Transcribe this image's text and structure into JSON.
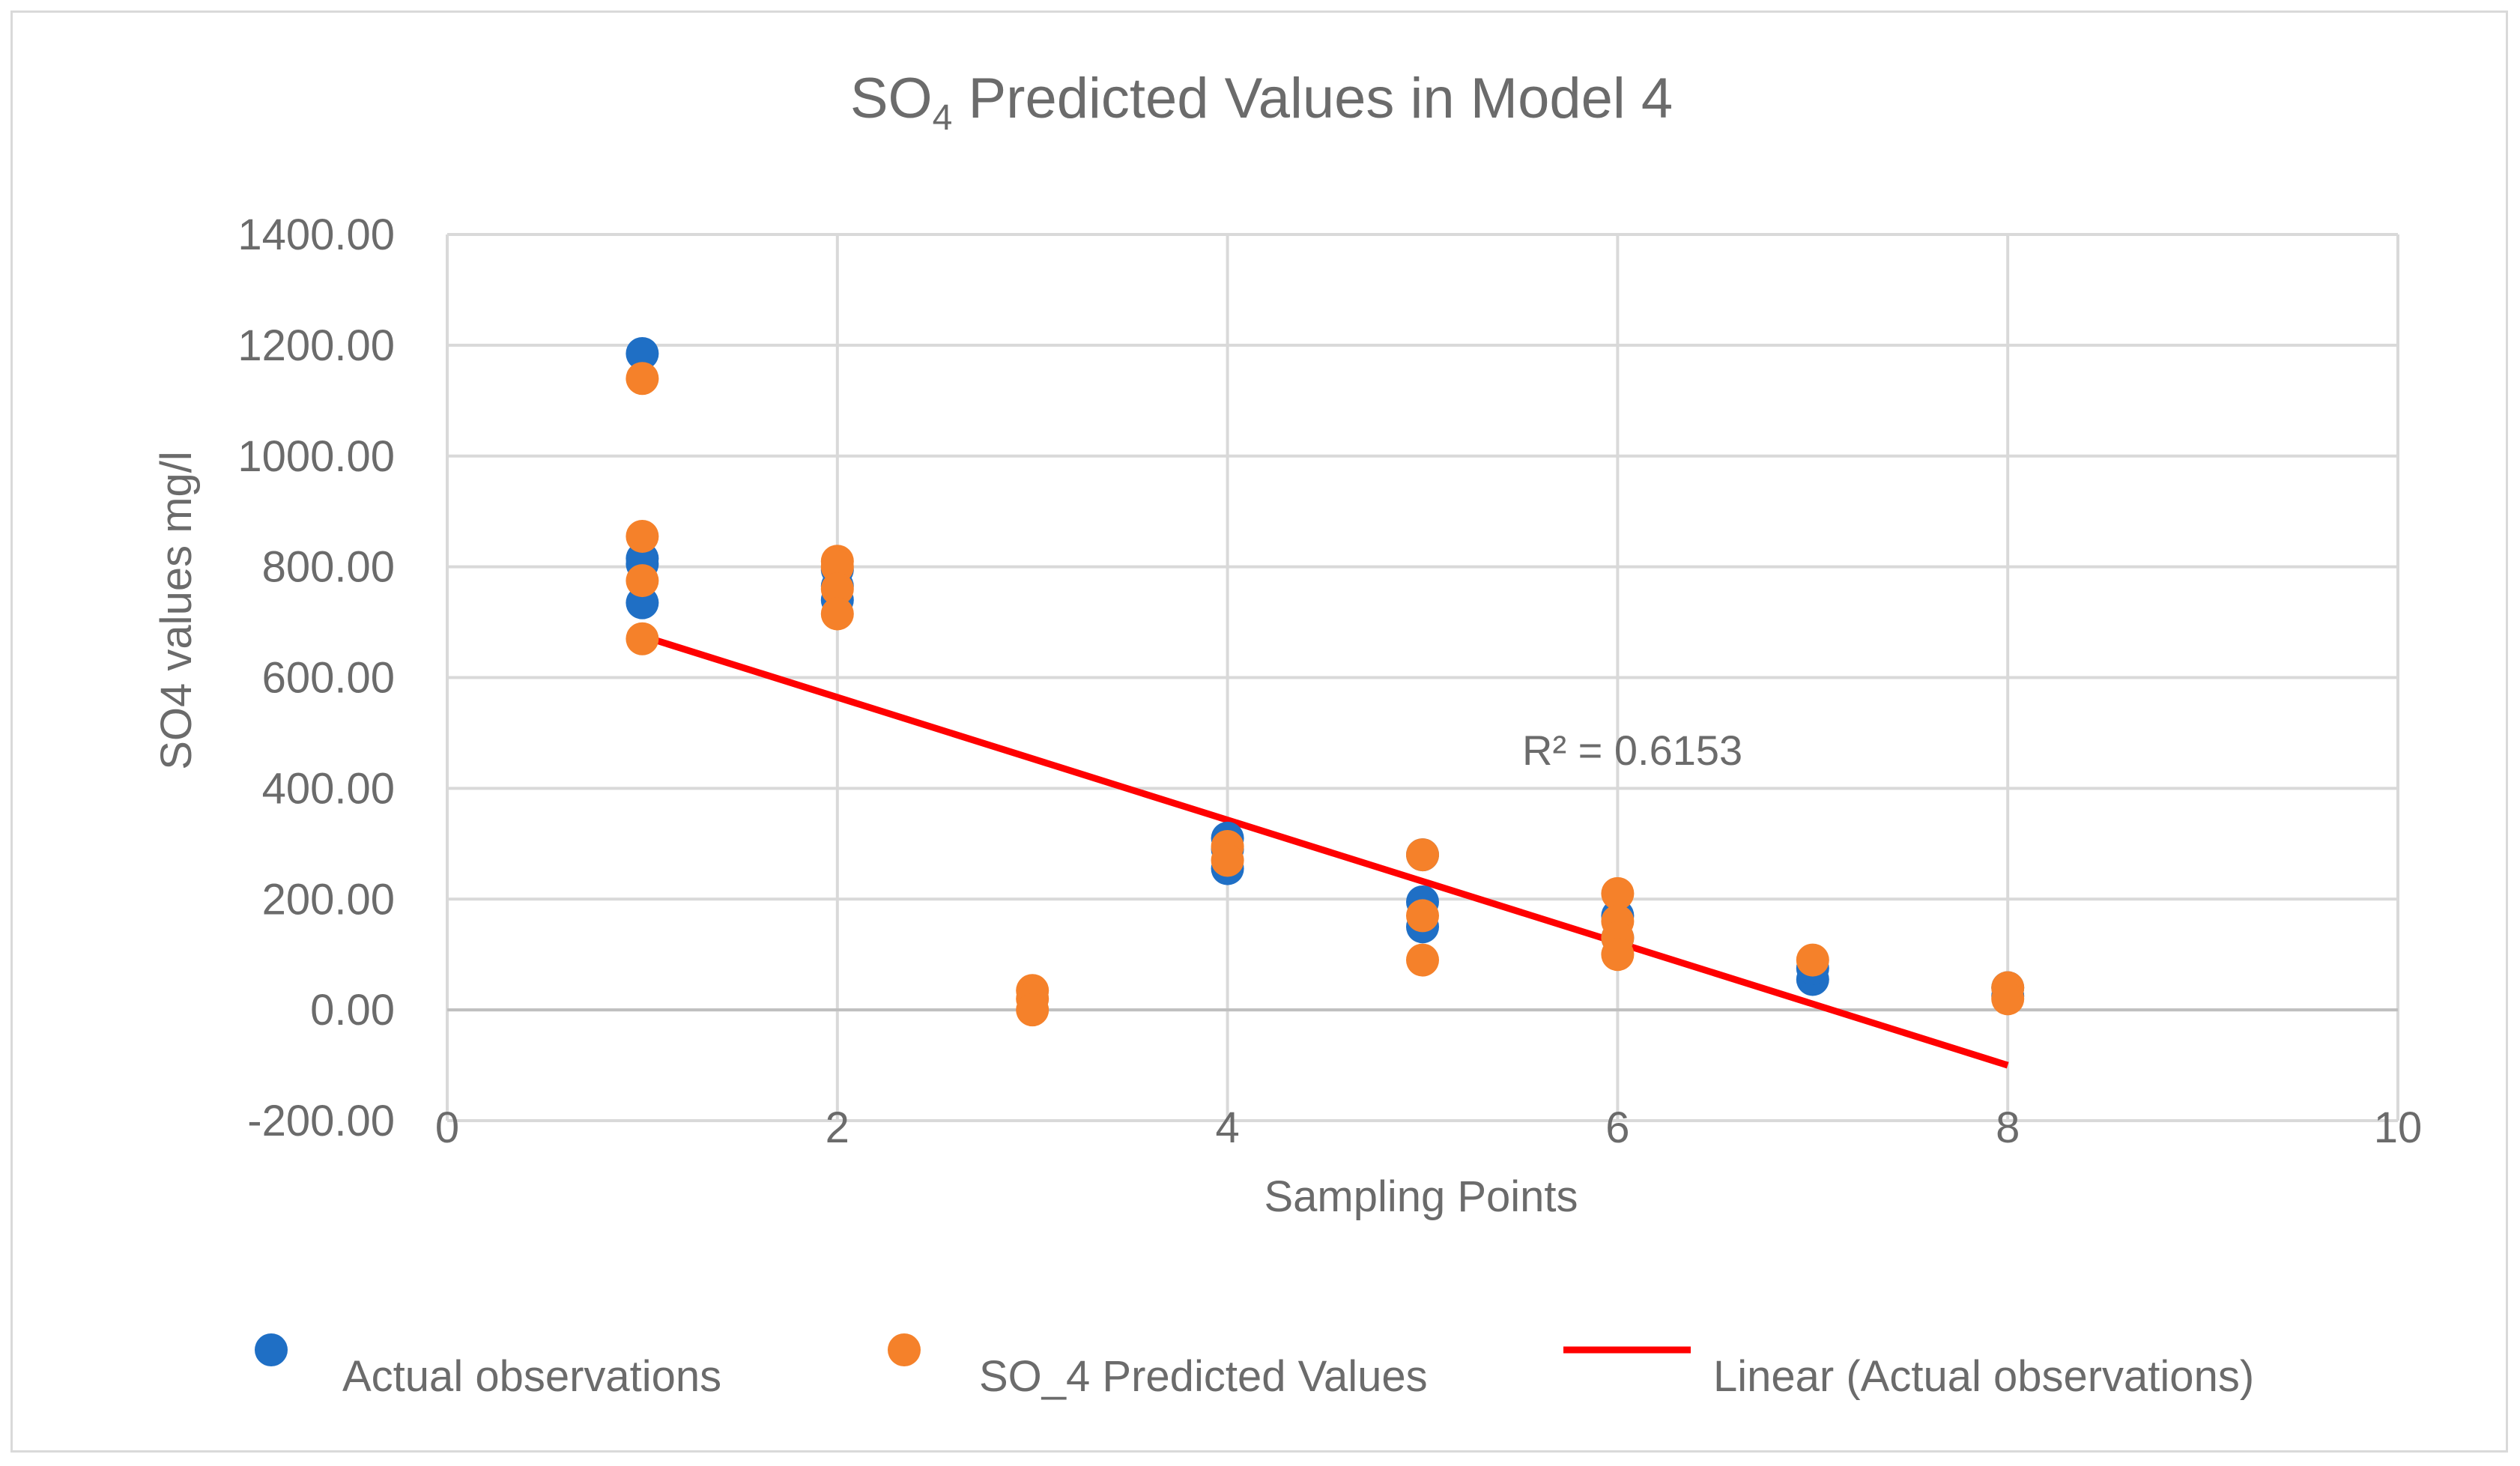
{
  "chart_data": {
    "type": "scatter",
    "title_main": "SO",
    "title_sub": "4",
    "title_rest": " Predicted Values in Model 4",
    "xlabel": "Sampling Points",
    "ylabel": "SO4 values mg/l",
    "xlim": [
      0,
      10
    ],
    "ylim": [
      -200,
      1400
    ],
    "x_ticks": [
      0,
      2,
      4,
      6,
      8,
      10
    ],
    "x_tick_labels": [
      "0",
      "2",
      "4",
      "6",
      "8",
      "10"
    ],
    "y_ticks": [
      1400,
      1200,
      1000,
      800,
      600,
      400,
      200,
      0,
      -200
    ],
    "y_tick_labels": [
      "1400.00",
      "1200.00",
      "1000.00",
      "800.00",
      "600.00",
      "400.00",
      "200.00",
      "0.00",
      "-200.00"
    ],
    "grid": true,
    "series": [
      {
        "name": "Actual observations",
        "color": "#1f6fc5",
        "points": [
          [
            1,
            1185
          ],
          [
            1,
            805
          ],
          [
            1,
            815
          ],
          [
            1,
            735
          ],
          [
            2,
            765
          ],
          [
            2,
            740
          ],
          [
            2,
            795
          ],
          [
            4,
            310
          ],
          [
            4,
            255
          ],
          [
            4,
            290
          ],
          [
            5,
            280
          ],
          [
            5,
            195
          ],
          [
            5,
            150
          ],
          [
            6,
            170
          ],
          [
            6,
            130
          ],
          [
            7,
            55
          ],
          [
            7,
            75
          ],
          [
            8,
            40
          ],
          [
            8,
            25
          ]
        ]
      },
      {
        "name": "SO_4 Predicted  Values",
        "color": "#f5812a",
        "points": [
          [
            1,
            1140
          ],
          [
            1,
            855
          ],
          [
            1,
            775
          ],
          [
            1,
            670
          ],
          [
            2,
            810
          ],
          [
            2,
            800
          ],
          [
            2,
            760
          ],
          [
            2,
            715
          ],
          [
            3,
            35
          ],
          [
            3,
            20
          ],
          [
            3,
            0
          ],
          [
            4,
            295
          ],
          [
            4,
            270
          ],
          [
            5,
            280
          ],
          [
            5,
            170
          ],
          [
            5,
            90
          ],
          [
            6,
            210
          ],
          [
            6,
            160
          ],
          [
            6,
            130
          ],
          [
            6,
            100
          ],
          [
            7,
            90
          ],
          [
            8,
            40
          ],
          [
            8,
            20
          ]
        ]
      },
      {
        "name": "Linear (Actual observations)",
        "color": "#ff0000",
        "type": "trendline",
        "from": [
          1,
          675
        ],
        "to": [
          8,
          -100
        ]
      }
    ],
    "annotation": "R² = 0.6153",
    "legend_position": "bottom"
  }
}
